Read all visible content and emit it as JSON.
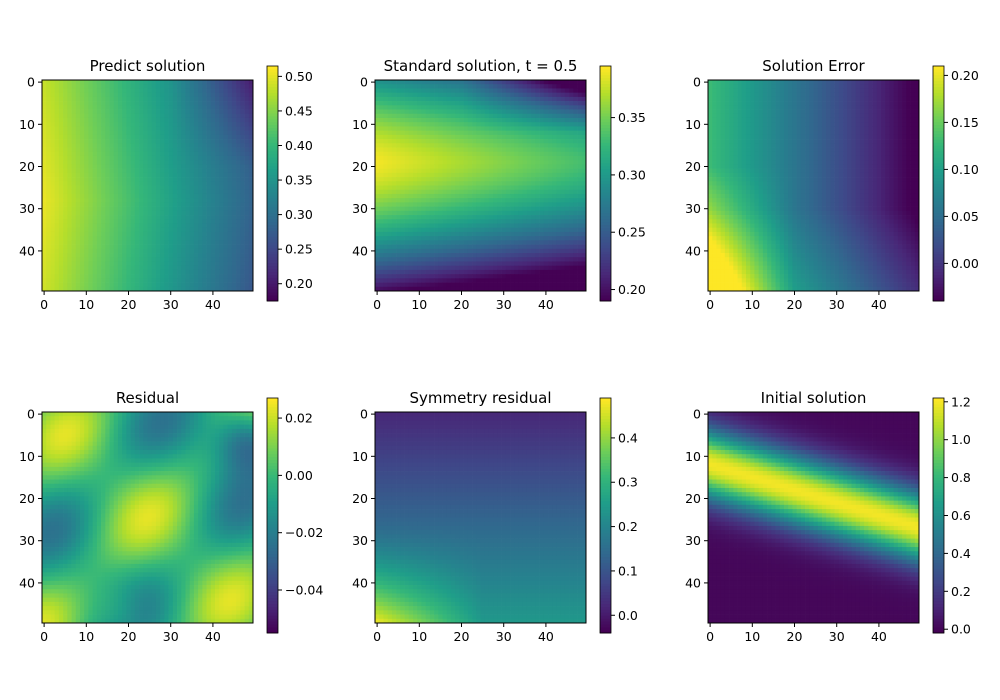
{
  "figure": {
    "background": "#ffffff"
  },
  "colormap": {
    "name": "viridis",
    "stops": [
      "#440154",
      "#482878",
      "#3e4989",
      "#31688e",
      "#26828e",
      "#1f9e89",
      "#35b779",
      "#6ece58",
      "#b5de2b",
      "#fde725"
    ]
  },
  "chart_data": [
    {
      "type": "heatmap",
      "title": "Predict solution",
      "shape": [
        50,
        50
      ],
      "xticks": [
        0,
        10,
        20,
        30,
        40
      ],
      "yticks": [
        0,
        10,
        20,
        30,
        40
      ],
      "field": "predict",
      "vmin": 0.175,
      "vmax": 0.515,
      "colorbar_ticks": [
        0.2,
        0.25,
        0.3,
        0.35,
        0.4,
        0.45,
        0.5
      ],
      "colorbar_labels": [
        "0.20",
        "0.25",
        "0.30",
        "0.35",
        "0.40",
        "0.45",
        "0.50"
      ]
    },
    {
      "type": "heatmap",
      "title": "Standard solution, t = 0.5",
      "shape": [
        50,
        50
      ],
      "xticks": [
        0,
        10,
        20,
        30,
        40
      ],
      "yticks": [
        0,
        10,
        20,
        30,
        40
      ],
      "field": "standard",
      "vmin": 0.19,
      "vmax": 0.395,
      "colorbar_ticks": [
        0.2,
        0.25,
        0.3,
        0.35
      ],
      "colorbar_labels": [
        "0.20",
        "0.25",
        "0.30",
        "0.35"
      ]
    },
    {
      "type": "heatmap",
      "title": "Solution Error",
      "shape": [
        50,
        50
      ],
      "xticks": [
        0,
        10,
        20,
        30,
        40
      ],
      "yticks": [
        0,
        10,
        20,
        30,
        40
      ],
      "field": "error",
      "vmin": -0.04,
      "vmax": 0.21,
      "colorbar_ticks": [
        0.0,
        0.05,
        0.1,
        0.15,
        0.2
      ],
      "colorbar_labels": [
        "0.00",
        "0.05",
        "0.10",
        "0.15",
        "0.20"
      ]
    },
    {
      "type": "heatmap",
      "title": "Residual",
      "shape": [
        50,
        50
      ],
      "xticks": [
        0,
        10,
        20,
        30,
        40
      ],
      "yticks": [
        0,
        10,
        20,
        30,
        40
      ],
      "field": "residual",
      "vmin": -0.055,
      "vmax": 0.027,
      "colorbar_ticks": [
        -0.04,
        -0.02,
        0.0,
        0.02
      ],
      "colorbar_labels": [
        "−0.04",
        "−0.02",
        "0.00",
        "0.02"
      ]
    },
    {
      "type": "heatmap",
      "title": "Symmetry residual",
      "shape": [
        50,
        50
      ],
      "xticks": [
        0,
        10,
        20,
        30,
        40
      ],
      "yticks": [
        0,
        10,
        20,
        30,
        40
      ],
      "field": "symmetry",
      "vmin": -0.04,
      "vmax": 0.49,
      "colorbar_ticks": [
        0.0,
        0.1,
        0.2,
        0.3,
        0.4
      ],
      "colorbar_labels": [
        "0.0",
        "0.1",
        "0.2",
        "0.3",
        "0.4"
      ]
    },
    {
      "type": "heatmap",
      "title": "Initial solution",
      "shape": [
        50,
        50
      ],
      "xticks": [
        0,
        10,
        20,
        30,
        40
      ],
      "yticks": [
        0,
        10,
        20,
        30,
        40
      ],
      "field": "initial",
      "vmin": -0.02,
      "vmax": 1.22,
      "colorbar_ticks": [
        0.0,
        0.2,
        0.4,
        0.6,
        0.8,
        1.0,
        1.2
      ],
      "colorbar_labels": [
        "0.0",
        "0.2",
        "0.4",
        "0.6",
        "0.8",
        "1.0",
        "1.2"
      ]
    }
  ]
}
